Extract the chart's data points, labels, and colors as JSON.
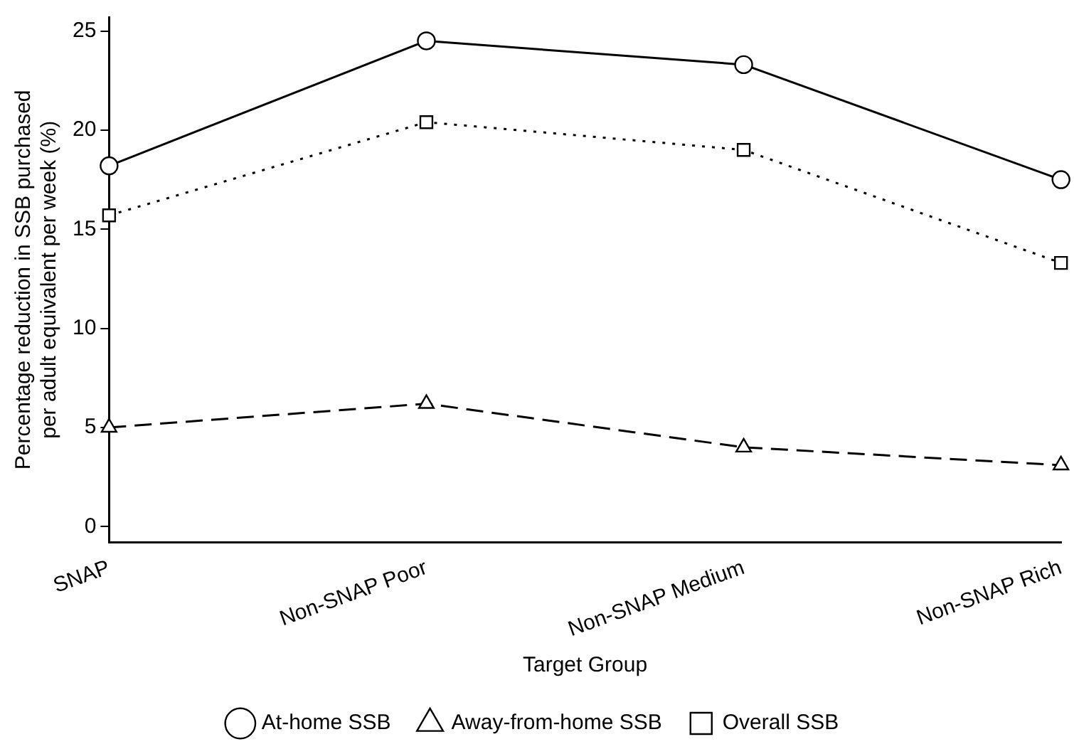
{
  "chart_data": {
    "type": "line",
    "xlabel": "Target Group",
    "ylabel": "Percentage reduction in SSB purchased\nper adult equivalent per week (%)",
    "categories": [
      "SNAP",
      "Non-SNAP Poor",
      "Non-SNAP Medium",
      "Non-SNAP Rich"
    ],
    "series": [
      {
        "name": "At-home SSB",
        "color": "#000000",
        "values": [
          18.2,
          24.5,
          23.3,
          17.5
        ],
        "marker": "circle",
        "line_style": "solid"
      },
      {
        "name": "Away-from-home SSB",
        "color": "#000000",
        "values": [
          5.0,
          6.2,
          4.0,
          3.1
        ],
        "marker": "triangle",
        "line_style": "dashed"
      },
      {
        "name": "Overall SSB",
        "color": "#000000",
        "values": [
          15.7,
          20.4,
          19.0,
          13.3
        ],
        "marker": "square",
        "line_style": "dotted"
      }
    ],
    "ylim": [
      -0.8,
      25.7
    ],
    "yticks": [
      0,
      5,
      10,
      15,
      20,
      25
    ],
    "grid": false,
    "legend": "bottom"
  }
}
